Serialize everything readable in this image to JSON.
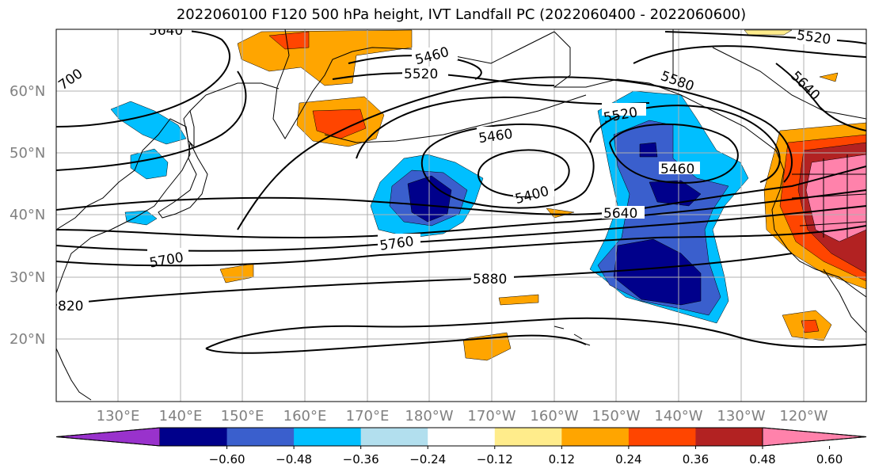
{
  "title": "2022060100 F120 500 hPa height, IVT Landfall PC (2022060400 - 2022060600)",
  "map": {
    "lat_labels": [
      "60°N",
      "50°N",
      "40°N",
      "30°N",
      "20°N"
    ],
    "lon_labels": [
      "130°E",
      "140°E",
      "150°E",
      "160°E",
      "170°E",
      "180°W",
      "170°W",
      "160°W",
      "150°W",
      "140°W",
      "130°W",
      "120°W"
    ],
    "grid": true
  },
  "contour_labels": [
    "5640",
    "5460",
    "5520",
    "700",
    "5460",
    "5400",
    "5580",
    "5520",
    "5640",
    "5460",
    "5640",
    "5700",
    "5760",
    "5880",
    "820",
    "5520"
  ],
  "colorbar": {
    "colors": [
      "#9932cc",
      "#00008b",
      "#3a5fcd",
      "#00bfff",
      "#b2dfee",
      "#ffffff",
      "#ffec8b",
      "#ffa500",
      "#ff4500",
      "#b22222",
      "#ff82ab"
    ],
    "tick_labels": [
      "−0.60",
      "−0.48",
      "−0.36",
      "−0.24",
      "−0.12",
      "0.12",
      "0.24",
      "0.36",
      "0.48",
      "0.60"
    ]
  }
}
